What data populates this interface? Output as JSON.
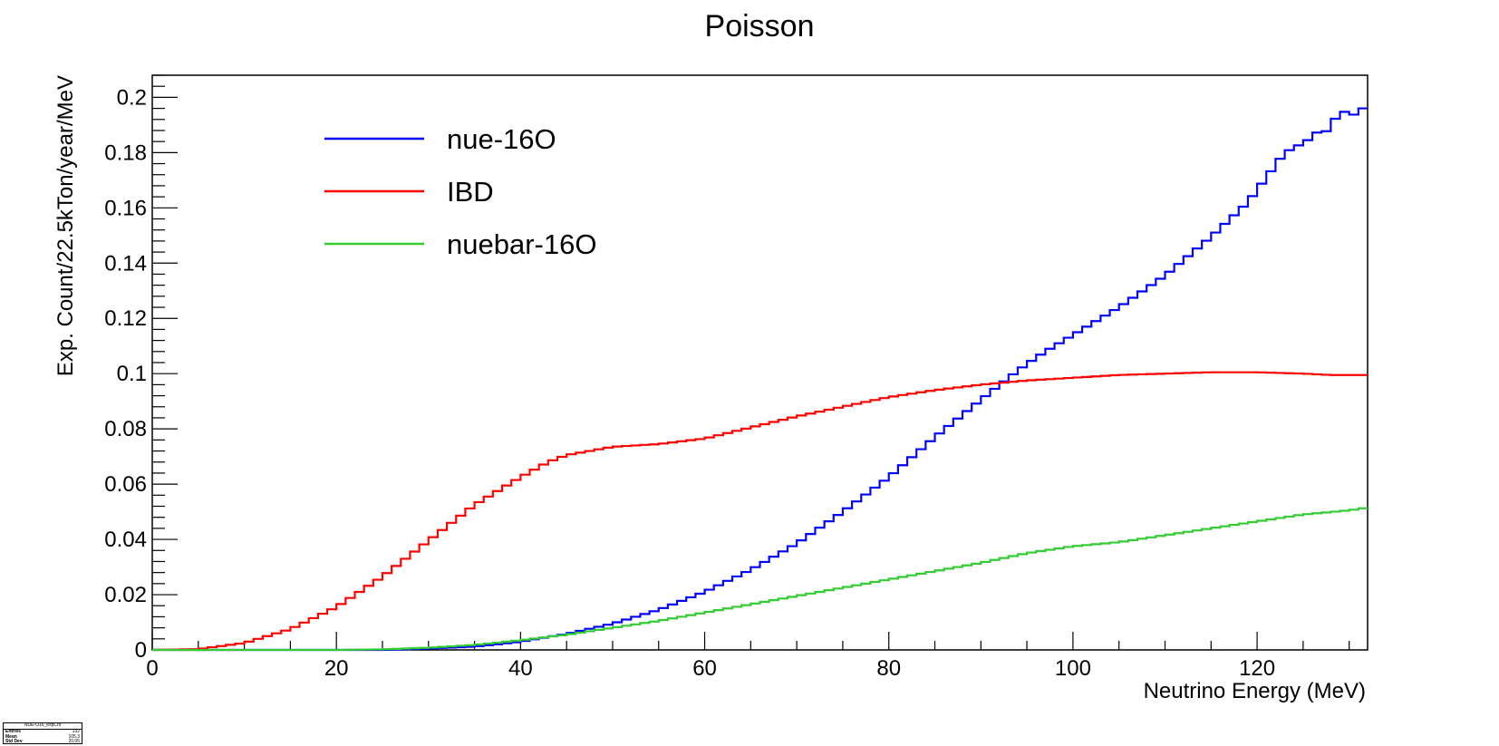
{
  "chart_data": {
    "type": "line",
    "title": "Poisson",
    "xlabel": "Neutrino Energy (MeV)",
    "ylabel": "Exp. Count/22.5kTon/year/MeV",
    "xlim": [
      0,
      132
    ],
    "ylim": [
      0,
      0.208
    ],
    "x_ticks": [
      0,
      20,
      40,
      60,
      80,
      100,
      120
    ],
    "x_tick_labels": [
      "0",
      "20",
      "40",
      "60",
      "80",
      "100",
      "120"
    ],
    "y_ticks": [
      0,
      0.02,
      0.04,
      0.06,
      0.08,
      0.1,
      0.12,
      0.14,
      0.16,
      0.18,
      0.2
    ],
    "y_tick_labels": [
      "0",
      "0.02",
      "0.04",
      "0.06",
      "0.08",
      "0.1",
      "0.12",
      "0.14",
      "0.16",
      "0.18",
      "0.2"
    ],
    "grid": false,
    "legend_position": "top-left",
    "bin_width": 1,
    "series": [
      {
        "name": "nue-16O",
        "color": "#0000ff",
        "points": [
          [
            0,
            0
          ],
          [
            25,
            0
          ],
          [
            30,
            0.0005
          ],
          [
            35,
            0.0012
          ],
          [
            38,
            0.0022
          ],
          [
            40,
            0.003
          ],
          [
            45,
            0.0058
          ],
          [
            50,
            0.0095
          ],
          [
            55,
            0.0145
          ],
          [
            60,
            0.021
          ],
          [
            65,
            0.029
          ],
          [
            70,
            0.0385
          ],
          [
            75,
            0.05
          ],
          [
            80,
            0.0625
          ],
          [
            85,
            0.077
          ],
          [
            90,
            0.0905
          ],
          [
            93,
            0.0985
          ],
          [
            95,
            0.1035
          ],
          [
            97,
            0.108
          ],
          [
            100,
            0.114
          ],
          [
            105,
            0.124
          ],
          [
            110,
            0.1355
          ],
          [
            115,
            0.1495
          ],
          [
            119,
            0.162
          ],
          [
            121,
            0.171
          ],
          [
            123,
            0.18
          ],
          [
            125,
            0.1835
          ],
          [
            126,
            0.1855
          ],
          [
            127,
            0.189
          ],
          [
            128,
            0.1865
          ],
          [
            129,
            0.198
          ],
          [
            130,
            0.1915
          ],
          [
            131,
            0.196
          ],
          [
            132,
            0.196
          ]
        ]
      },
      {
        "name": "IBD",
        "color": "#ff0000",
        "points": [
          [
            0,
            0
          ],
          [
            5,
            0.0003
          ],
          [
            10,
            0.0025
          ],
          [
            15,
            0.0075
          ],
          [
            20,
            0.0155
          ],
          [
            25,
            0.0265
          ],
          [
            30,
            0.0395
          ],
          [
            35,
            0.0525
          ],
          [
            40,
            0.0625
          ],
          [
            43,
            0.068
          ],
          [
            45,
            0.0705
          ],
          [
            50,
            0.0735
          ],
          [
            55,
            0.0745
          ],
          [
            60,
            0.0765
          ],
          [
            65,
            0.0805
          ],
          [
            70,
            0.0845
          ],
          [
            75,
            0.088
          ],
          [
            80,
            0.0915
          ],
          [
            85,
            0.094
          ],
          [
            90,
            0.096
          ],
          [
            95,
            0.0975
          ],
          [
            100,
            0.0985
          ],
          [
            105,
            0.0995
          ],
          [
            110,
            0.1
          ],
          [
            115,
            0.1005
          ],
          [
            120,
            0.1005
          ],
          [
            125,
            0.1
          ],
          [
            128,
            0.0995
          ],
          [
            130,
            0.0995
          ],
          [
            132,
            0.0995
          ]
        ]
      },
      {
        "name": "nuebar-16O",
        "color": "#33cc33",
        "points": [
          [
            0,
            0
          ],
          [
            20,
            0
          ],
          [
            25,
            0.0002
          ],
          [
            30,
            0.0008
          ],
          [
            35,
            0.0018
          ],
          [
            40,
            0.0035
          ],
          [
            45,
            0.0055
          ],
          [
            50,
            0.008
          ],
          [
            55,
            0.0105
          ],
          [
            60,
            0.0135
          ],
          [
            65,
            0.0165
          ],
          [
            70,
            0.0195
          ],
          [
            75,
            0.0225
          ],
          [
            80,
            0.0255
          ],
          [
            85,
            0.0285
          ],
          [
            90,
            0.0315
          ],
          [
            95,
            0.035
          ],
          [
            100,
            0.0375
          ],
          [
            105,
            0.039
          ],
          [
            110,
            0.0415
          ],
          [
            115,
            0.044
          ],
          [
            120,
            0.0465
          ],
          [
            125,
            0.049
          ],
          [
            130,
            0.0505
          ],
          [
            132,
            0.0515
          ]
        ]
      }
    ]
  },
  "stats_box": {
    "title": "NUE-O16_expCnt",
    "rows": [
      {
        "label": "Entries",
        "value": "132"
      },
      {
        "label": "Mean",
        "value": "105.3"
      },
      {
        "label": "Std Dev",
        "value": "20.05"
      }
    ]
  }
}
